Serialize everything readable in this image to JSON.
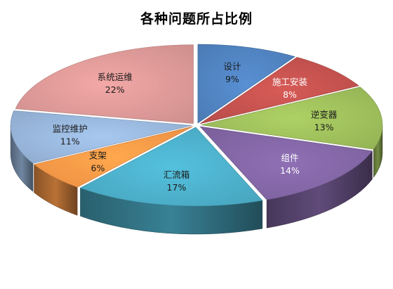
{
  "chart_data": {
    "type": "pie",
    "title": "各种问题所占比例",
    "categories": [
      "设计",
      "施工安装",
      "逆变器",
      "组件",
      "汇流箱",
      "支架",
      "监控维护",
      "系统运维"
    ],
    "values": [
      9,
      8,
      13,
      14,
      17,
      6,
      11,
      22
    ],
    "value_labels": [
      "9%",
      "8%",
      "13%",
      "14%",
      "17%",
      "6%",
      "11%",
      "22%"
    ],
    "colors": [
      "#4F81BD",
      "#C0504D",
      "#9BBB59",
      "#8064A2",
      "#4BACC6",
      "#F79646",
      "#95B3D7",
      "#D99694"
    ],
    "legend": "none",
    "style": "3d-exploded"
  }
}
